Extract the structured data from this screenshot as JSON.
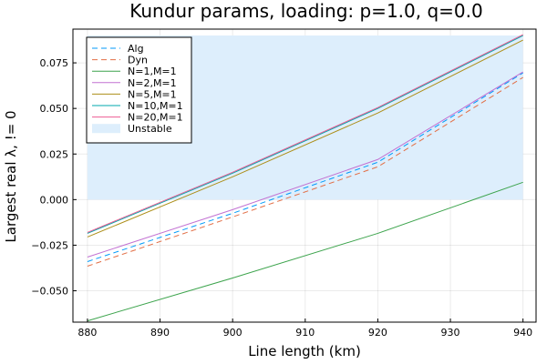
{
  "chart_data": {
    "type": "line",
    "title": "Kundur params, loading: p=1.0, q=0.0",
    "xlabel": "Line length (km)",
    "ylabel": "Largest real λ, != 0",
    "xlim": [
      878,
      941.8
    ],
    "ylim": [
      -0.0672,
      0.0935
    ],
    "xticks": [
      880,
      890,
      900,
      910,
      920,
      930,
      940
    ],
    "xtick_labels": [
      "880",
      "890",
      "900",
      "910",
      "920",
      "930",
      "940"
    ],
    "yticks": [
      -0.05,
      -0.025,
      0.0,
      0.025,
      0.05,
      0.075
    ],
    "ytick_labels": [
      "−0.050",
      "−0.025",
      "0.000",
      "0.025",
      "0.050",
      "0.075"
    ],
    "grid": true,
    "legend_position": "top-left",
    "unstable_region": {
      "label": "Unstable",
      "x": [
        880,
        940
      ],
      "y": [
        0.0,
        0.09
      ],
      "color": "#ddeefc"
    },
    "series": [
      {
        "name": "Alg",
        "color": "#009af9",
        "dash": true,
        "x": [
          880,
          900,
          920,
          940
        ],
        "y": [
          -0.034,
          -0.0075,
          0.0205,
          0.0695
        ]
      },
      {
        "name": "Dyn",
        "color": "#e26f46",
        "dash": true,
        "x": [
          880,
          900,
          920,
          940
        ],
        "y": [
          -0.0365,
          -0.0095,
          0.018,
          0.067
        ]
      },
      {
        "name": "N=1,M=1",
        "color": "#3da44d",
        "dash": false,
        "x": [
          880,
          900,
          920,
          940
        ],
        "y": [
          -0.0665,
          -0.043,
          -0.0185,
          0.0095
        ]
      },
      {
        "name": "N=2,M=1",
        "color": "#c271d2",
        "dash": false,
        "x": [
          880,
          900,
          920,
          940
        ],
        "y": [
          -0.0315,
          -0.0055,
          0.022,
          0.07
        ]
      },
      {
        "name": "N=5,M=1",
        "color": "#ac8e18",
        "dash": false,
        "x": [
          880,
          900,
          920,
          940
        ],
        "y": [
          -0.0205,
          0.0125,
          0.0475,
          0.0875
        ]
      },
      {
        "name": "N=10,M=1",
        "color": "#00a9ad",
        "dash": false,
        "x": [
          880,
          900,
          920,
          940
        ],
        "y": [
          -0.0185,
          0.0145,
          0.05,
          0.09
        ]
      },
      {
        "name": "N=20,M=1",
        "color": "#ed5d92",
        "dash": false,
        "x": [
          880,
          900,
          920,
          940
        ],
        "y": [
          -0.018,
          0.015,
          0.0505,
          0.0905
        ]
      }
    ]
  }
}
